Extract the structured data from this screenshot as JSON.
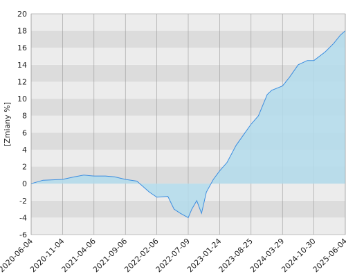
{
  "chart_data": {
    "type": "area",
    "y_label": "[Zmiany %]",
    "x": [
      "2020-06-04",
      "2020-08-01",
      "2020-11-04",
      "2021-01-01",
      "2021-02-15",
      "2021-04-06",
      "2021-06-01",
      "2021-07-15",
      "2021-09-06",
      "2021-11-01",
      "2022-01-01",
      "2022-02-06",
      "2022-04-01",
      "2022-05-01",
      "2022-06-01",
      "2022-07-09",
      "2022-08-01",
      "2022-09-01",
      "2022-10-01",
      "2022-11-01",
      "2022-12-15",
      "2023-01-24",
      "2023-03-15",
      "2023-05-15",
      "2023-07-15",
      "2023-08-25",
      "2023-10-15",
      "2023-12-15",
      "2024-01-15",
      "2024-03-29",
      "2024-05-15",
      "2024-07-15",
      "2024-09-15",
      "2024-10-30",
      "2025-01-15",
      "2025-03-15",
      "2025-05-01",
      "2025-06-04"
    ],
    "values": [
      0,
      0.4,
      0.5,
      0.8,
      1.0,
      0.9,
      0.9,
      0.8,
      0.5,
      0.3,
      -1.0,
      -1.6,
      -1.5,
      -3.0,
      -3.5,
      -4.0,
      -3.0,
      -2.0,
      -3.5,
      -1.0,
      0.5,
      1.5,
      2.5,
      4.5,
      6.0,
      7.0,
      8.0,
      10.5,
      11.0,
      11.5,
      12.5,
      14.0,
      14.5,
      14.5,
      15.5,
      16.5,
      17.5,
      18.0
    ],
    "line_color": "#3a8de0",
    "fill_color": "#b3dcec",
    "ylim": [
      -6,
      20
    ],
    "yticks": [
      -6,
      -4,
      -2,
      0,
      2,
      4,
      6,
      8,
      10,
      12,
      14,
      16,
      18,
      20
    ],
    "xticks": [
      "2020-06-04",
      "2020-11-04",
      "2021-04-06",
      "2021-09-06",
      "2022-02-06",
      "2022-07-09",
      "2023-01-24",
      "2023-08-25",
      "2024-03-29",
      "2024-10-30",
      "2025-06-04"
    ],
    "grid": true
  }
}
